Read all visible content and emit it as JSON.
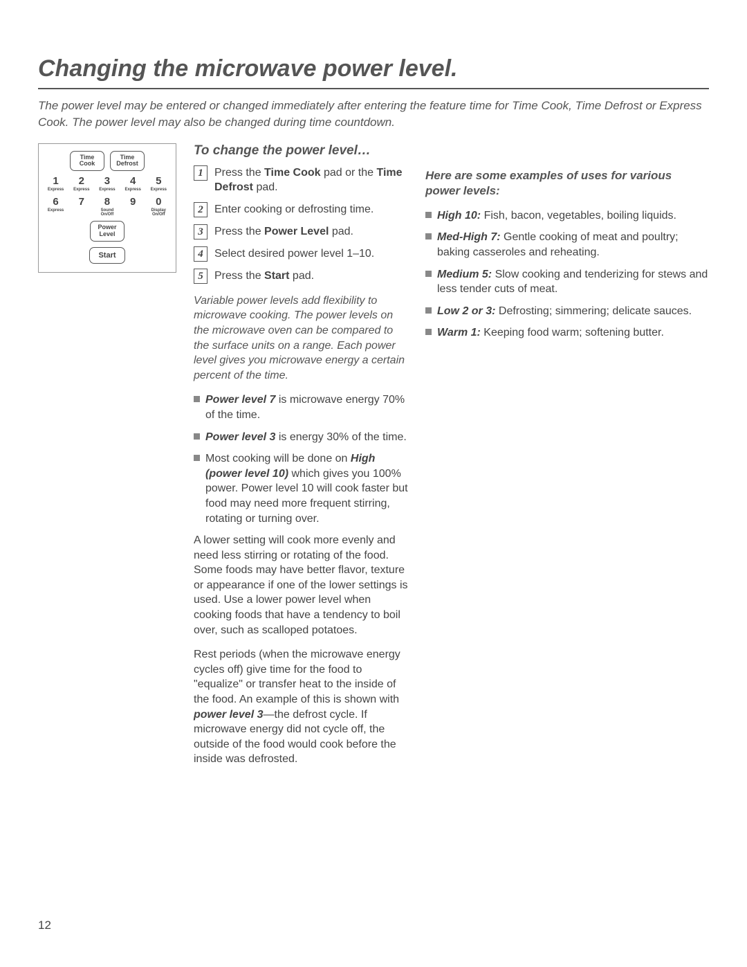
{
  "title": "Changing the microwave power level.",
  "intro": "The power level may be entered or changed immediately after entering the feature time for Time Cook, Time Defrost or Express Cook. The power level may also be changed during time countdown.",
  "keypad": {
    "top_buttons": [
      {
        "line1": "Time",
        "line2": "Cook"
      },
      {
        "line1": "Time",
        "line2": "Defrost"
      }
    ],
    "row1": [
      {
        "n": "1",
        "sub": "Express"
      },
      {
        "n": "2",
        "sub": "Express"
      },
      {
        "n": "3",
        "sub": "Express"
      },
      {
        "n": "4",
        "sub": "Express"
      },
      {
        "n": "5",
        "sub": "Express"
      }
    ],
    "row2": [
      {
        "n": "6",
        "sub": "Express"
      },
      {
        "n": "7",
        "sub": ""
      },
      {
        "n": "8",
        "sub": "Sound On/Off"
      },
      {
        "n": "9",
        "sub": ""
      },
      {
        "n": "0",
        "sub": "Display On/Off"
      }
    ],
    "power_btn": {
      "line1": "Power",
      "line2": "Level"
    },
    "start_btn": "Start"
  },
  "sub_title": "To change the power level…",
  "steps": [
    {
      "num": "1",
      "pre": "Press the ",
      "bold1": "Time Cook",
      "mid": " pad or the ",
      "bold2": "Time Defrost",
      "post": " pad."
    },
    {
      "num": "2",
      "pre": "Enter cooking or defrosting time.",
      "bold1": "",
      "mid": "",
      "bold2": "",
      "post": ""
    },
    {
      "num": "3",
      "pre": "Press the ",
      "bold1": "Power Level",
      "mid": "",
      "bold2": "",
      "post": " pad."
    },
    {
      "num": "4",
      "pre": "Select desired power level 1–10.",
      "bold1": "",
      "mid": "",
      "bold2": "",
      "post": ""
    },
    {
      "num": "5",
      "pre": "Press the ",
      "bold1": "Start",
      "mid": "",
      "bold2": "",
      "post": " pad."
    }
  ],
  "ital_para": "Variable power levels add flexibility to microwave cooking. The power levels on the microwave oven can be compared to the surface units on a range. Each power level gives you microwave energy a certain percent of the time.",
  "mid_bullets": [
    {
      "bold": "Power level 7",
      "text": "  is microwave energy 70% of the time."
    },
    {
      "bold": "Power level 3",
      "text": "  is energy 30% of the time."
    }
  ],
  "mid_bullet_3": {
    "pre": "Most cooking will be done on ",
    "bold": "High (power level 10)",
    "post": "  which gives you 100% power. Power level 10 will cook faster but food may need more frequent stirring, rotating or turning over."
  },
  "body1": "A lower setting will cook more evenly and need less stirring or rotating of the food. Some foods may have better flavor, texture or appearance if one of the lower settings is used. Use a lower power level when cooking foods that have a tendency to boil over, such as scalloped potatoes.",
  "body2": {
    "pre": "Rest periods (when the microwave energy cycles off) give time for the food to \"equalize\" or transfer heat to the inside of the food. An example of this is shown with ",
    "bold": "power level 3",
    "post": "—the defrost cycle. If microwave energy did not cycle off, the outside of the food would cook before the inside was defrosted."
  },
  "right_head": "Here are some examples of uses for various power levels:",
  "right_bullets": [
    {
      "bold": "High 10:",
      "text": "  Fish, bacon, vegetables, boiling liquids."
    },
    {
      "bold": "Med-High 7:",
      "text": "  Gentle cooking of meat and poultry; baking casseroles and reheating."
    },
    {
      "bold": "Medium 5:",
      "text": "  Slow cooking and tenderizing for stews and less tender cuts of meat."
    },
    {
      "bold": "Low 2 or 3:",
      "text": "  Defrosting; simmering; delicate sauces."
    },
    {
      "bold": "Warm 1:",
      "text": "  Keeping food warm; softening butter."
    }
  ],
  "page_num": "12"
}
